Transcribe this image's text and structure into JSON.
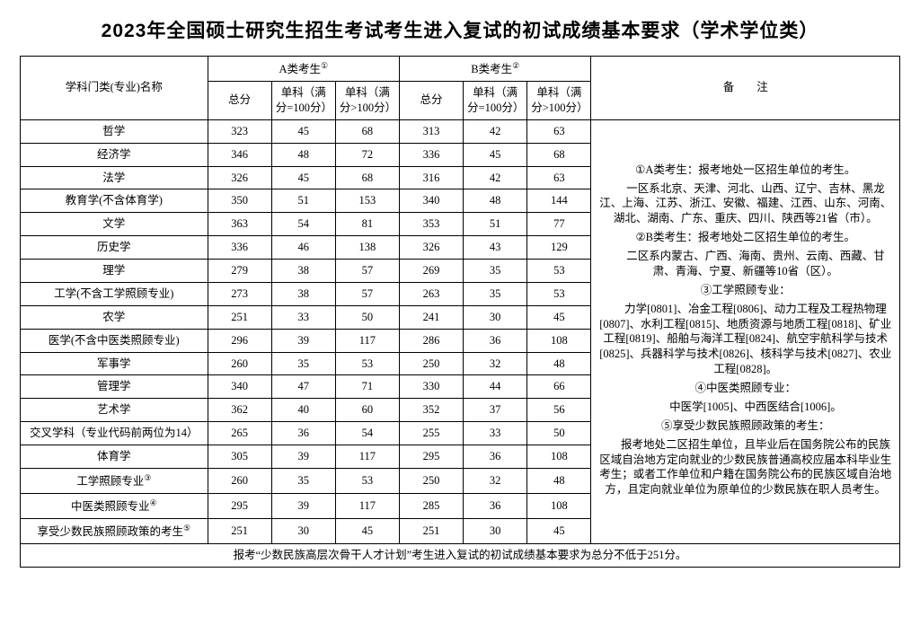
{
  "title": "2023年全国硕士研究生招生考试考生进入复试的初试成绩基本要求（学术学位类）",
  "header": {
    "category": "学科门类(专业)名称",
    "groupA": "A类考生",
    "groupB": "B类考生",
    "notes": "备　　注",
    "total": "总分",
    "single100": "单科（满分=100分）",
    "singleOver100": "单科（满分>100分）",
    "sup1": "①",
    "sup2": "②"
  },
  "rows": [
    {
      "cat": "哲学",
      "a": [
        323,
        45,
        68
      ],
      "b": [
        313,
        42,
        63
      ]
    },
    {
      "cat": "经济学",
      "a": [
        346,
        48,
        72
      ],
      "b": [
        336,
        45,
        68
      ]
    },
    {
      "cat": "法学",
      "a": [
        326,
        45,
        68
      ],
      "b": [
        316,
        42,
        63
      ]
    },
    {
      "cat": "教育学(不含体育学)",
      "a": [
        350,
        51,
        153
      ],
      "b": [
        340,
        48,
        144
      ]
    },
    {
      "cat": "文学",
      "a": [
        363,
        54,
        81
      ],
      "b": [
        353,
        51,
        77
      ]
    },
    {
      "cat": "历史学",
      "a": [
        336,
        46,
        138
      ],
      "b": [
        326,
        43,
        129
      ]
    },
    {
      "cat": "理学",
      "a": [
        279,
        38,
        57
      ],
      "b": [
        269,
        35,
        53
      ]
    },
    {
      "cat": "工学(不含工学照顾专业)",
      "a": [
        273,
        38,
        57
      ],
      "b": [
        263,
        35,
        53
      ]
    },
    {
      "cat": "农学",
      "a": [
        251,
        33,
        50
      ],
      "b": [
        241,
        30,
        45
      ]
    },
    {
      "cat": "医学(不含中医类照顾专业)",
      "a": [
        296,
        39,
        117
      ],
      "b": [
        286,
        36,
        108
      ]
    },
    {
      "cat": "军事学",
      "a": [
        260,
        35,
        53
      ],
      "b": [
        250,
        32,
        48
      ]
    },
    {
      "cat": "管理学",
      "a": [
        340,
        47,
        71
      ],
      "b": [
        330,
        44,
        66
      ]
    },
    {
      "cat": "艺术学",
      "a": [
        362,
        40,
        60
      ],
      "b": [
        352,
        37,
        56
      ]
    },
    {
      "cat": "交叉学科（专业代码前两位为14）",
      "a": [
        265,
        36,
        54
      ],
      "b": [
        255,
        33,
        50
      ]
    },
    {
      "cat": "体育学",
      "a": [
        305,
        39,
        117
      ],
      "b": [
        295,
        36,
        108
      ]
    },
    {
      "cat": "工学照顾专业",
      "sup": "③",
      "a": [
        260,
        35,
        53
      ],
      "b": [
        250,
        32,
        48
      ]
    },
    {
      "cat": "中医类照顾专业",
      "sup": "④",
      "a": [
        295,
        39,
        117
      ],
      "b": [
        285,
        36,
        108
      ]
    },
    {
      "cat": "享受少数民族照顾政策的考生",
      "sup": "⑤",
      "a": [
        251,
        30,
        45
      ],
      "b": [
        251,
        30,
        45
      ]
    }
  ],
  "notes": {
    "n1h": "①A类考生：报考地处一区招生单位的考生。",
    "n1b": "一区系北京、天津、河北、山西、辽宁、吉林、黑龙江、上海、江苏、浙江、安徽、福建、江西、山东、河南、湖北、湖南、广东、重庆、四川、陕西等21省（市）。",
    "n2h": "②B类考生：报考地处二区招生单位的考生。",
    "n2b": "二区系内蒙古、广西、海南、贵州、云南、西藏、甘肃、青海、宁夏、新疆等10省（区）。",
    "n3h": "③工学照顾专业：",
    "n3b": "力学[0801]、冶金工程[0806]、动力工程及工程热物理[0807]、水利工程[0815]、地质资源与地质工程[0818]、矿业工程[0819]、船舶与海洋工程[0824]、航空宇航科学与技术[0825]、兵器科学与技术[0826]、核科学与技术[0827]、农业工程[0828]。",
    "n4h": "④中医类照顾专业：",
    "n4b": "中医学[1005]、中西医结合[1006]。",
    "n5h": "⑤享受少数民族照顾政策的考生：",
    "n5b": "报考地处二区招生单位，且毕业后在国务院公布的民族区域自治地方定向就业的少数民族普通高校应届本科毕业生考生；或者工作单位和户籍在国务院公布的民族区域自治地方，且定向就业单位为原单位的少数民族在职人员考生。"
  },
  "footer": "报考“少数民族高层次骨干人才计划”考生进入复试的初试成绩基本要求为总分不低于251分。"
}
